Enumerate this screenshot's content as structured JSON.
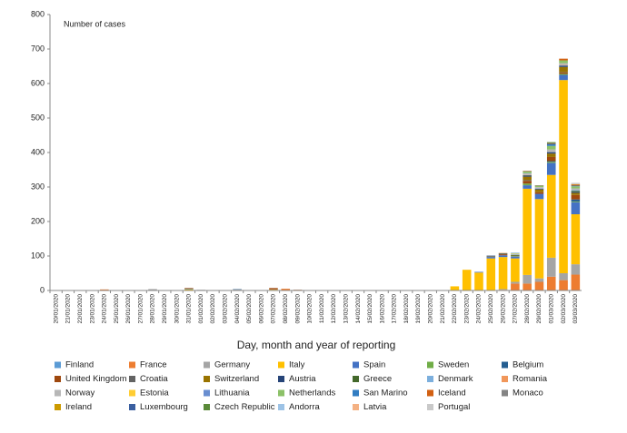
{
  "chart_data": {
    "type": "stacked_bar",
    "y_label": "Number of cases",
    "x_label": "Day, month and year of reporting",
    "categories": [
      "20/01/2020",
      "21/01/2020",
      "22/01/2020",
      "23/01/2020",
      "24/01/2020",
      "25/01/2020",
      "26/01/2020",
      "27/01/2020",
      "28/01/2020",
      "29/01/2020",
      "30/01/2020",
      "31/01/2020",
      "01/02/2020",
      "02/02/2020",
      "03/02/2020",
      "04/02/2020",
      "05/02/2020",
      "06/02/2020",
      "07/02/2020",
      "08/02/2020",
      "09/02/2020",
      "10/02/2020",
      "11/02/2020",
      "12/02/2020",
      "13/02/2020",
      "14/02/2020",
      "15/02/2020",
      "16/02/2020",
      "17/02/2020",
      "18/02/2020",
      "19/02/2020",
      "20/02/2020",
      "21/02/2020",
      "22/02/2020",
      "23/02/2020",
      "24/02/2020",
      "25/02/2020",
      "26/02/2020",
      "27/02/2020",
      "28/02/2020",
      "29/02/2020",
      "01/03/2020",
      "02/03/2020",
      "03/03/2020"
    ],
    "ylim": [
      0,
      800
    ],
    "yticks": [
      0,
      100,
      200,
      300,
      400,
      500,
      600,
      700,
      800
    ],
    "series": [
      {
        "name": "Finland",
        "color": "#5b9bd5",
        "values": [
          0,
          0,
          0,
          0,
          0,
          0,
          0,
          0,
          0,
          1,
          0,
          0,
          0,
          0,
          0,
          0,
          0,
          0,
          0,
          0,
          0,
          0,
          0,
          0,
          0,
          0,
          0,
          0,
          0,
          0,
          0,
          0,
          0,
          0,
          0,
          0,
          0,
          0,
          0,
          0,
          0,
          0,
          0,
          1
        ]
      },
      {
        "name": "France",
        "color": "#ed7d31",
        "values": [
          0,
          0,
          0,
          0,
          3,
          0,
          0,
          0,
          1,
          0,
          0,
          0,
          0,
          0,
          0,
          0,
          0,
          0,
          0,
          5,
          0,
          0,
          0,
          0,
          0,
          0,
          0,
          0,
          0,
          0,
          0,
          0,
          0,
          0,
          0,
          0,
          0,
          2,
          20,
          20,
          25,
          40,
          30,
          45
        ]
      },
      {
        "name": "Germany",
        "color": "#a5a5a5",
        "values": [
          0,
          0,
          0,
          0,
          0,
          0,
          0,
          1,
          3,
          0,
          0,
          1,
          2,
          0,
          0,
          3,
          0,
          0,
          2,
          0,
          0,
          0,
          0,
          0,
          0,
          0,
          0,
          0,
          0,
          0,
          0,
          0,
          0,
          0,
          0,
          0,
          0,
          2,
          5,
          25,
          10,
          55,
          20,
          30
        ]
      },
      {
        "name": "Italy",
        "color": "#ffc000",
        "values": [
          0,
          0,
          0,
          0,
          0,
          0,
          0,
          0,
          0,
          0,
          0,
          2,
          0,
          0,
          0,
          0,
          0,
          0,
          1,
          0,
          0,
          0,
          0,
          0,
          0,
          0,
          0,
          0,
          0,
          0,
          0,
          0,
          0,
          12,
          60,
          52,
          93,
          93,
          68,
          250,
          230,
          240,
          560,
          145
        ]
      },
      {
        "name": "Spain",
        "color": "#4472c4",
        "values": [
          0,
          0,
          0,
          0,
          0,
          0,
          0,
          0,
          0,
          0,
          0,
          1,
          0,
          0,
          1,
          0,
          0,
          0,
          0,
          0,
          0,
          0,
          0,
          0,
          0,
          0,
          0,
          0,
          0,
          0,
          0,
          0,
          0,
          0,
          0,
          2,
          4,
          5,
          5,
          10,
          15,
          35,
          15,
          35
        ]
      },
      {
        "name": "Sweden",
        "color": "#70ad47",
        "values": [
          0,
          0,
          0,
          0,
          0,
          0,
          0,
          0,
          0,
          0,
          0,
          1,
          0,
          0,
          0,
          0,
          0,
          0,
          0,
          0,
          0,
          0,
          0,
          0,
          0,
          0,
          0,
          0,
          0,
          0,
          0,
          0,
          0,
          0,
          0,
          0,
          0,
          0,
          1,
          5,
          0,
          3,
          3,
          2
        ]
      },
      {
        "name": "Belgium",
        "color": "#255e91",
        "values": [
          0,
          0,
          0,
          0,
          0,
          0,
          0,
          0,
          0,
          0,
          0,
          0,
          0,
          0,
          0,
          1,
          0,
          0,
          0,
          0,
          0,
          0,
          0,
          0,
          0,
          0,
          0,
          0,
          0,
          0,
          0,
          0,
          0,
          0,
          0,
          0,
          0,
          0,
          0,
          0,
          0,
          2,
          0,
          6
        ]
      },
      {
        "name": "United Kingdom",
        "color": "#9e480e",
        "values": [
          0,
          0,
          0,
          0,
          0,
          0,
          0,
          0,
          0,
          0,
          0,
          2,
          0,
          0,
          0,
          0,
          0,
          1,
          4,
          0,
          2,
          0,
          0,
          0,
          0,
          0,
          0,
          0,
          0,
          0,
          0,
          0,
          0,
          0,
          0,
          0,
          0,
          3,
          0,
          8,
          5,
          12,
          4,
          13
        ]
      },
      {
        "name": "Croatia",
        "color": "#636363",
        "values": [
          0,
          0,
          0,
          0,
          0,
          0,
          0,
          0,
          0,
          0,
          0,
          0,
          0,
          0,
          0,
          0,
          0,
          0,
          0,
          0,
          0,
          0,
          0,
          0,
          0,
          0,
          0,
          0,
          0,
          0,
          0,
          0,
          0,
          0,
          0,
          0,
          1,
          2,
          1,
          2,
          0,
          0,
          1,
          0
        ]
      },
      {
        "name": "Switzerland",
        "color": "#997300",
        "values": [
          0,
          0,
          0,
          0,
          0,
          0,
          0,
          0,
          0,
          0,
          0,
          0,
          0,
          0,
          0,
          0,
          0,
          0,
          0,
          0,
          0,
          0,
          0,
          0,
          0,
          0,
          0,
          0,
          0,
          0,
          0,
          0,
          0,
          0,
          0,
          0,
          1,
          0,
          1,
          10,
          8,
          10,
          15,
          6
        ]
      },
      {
        "name": "Austria",
        "color": "#264478",
        "values": [
          0,
          0,
          0,
          0,
          0,
          0,
          0,
          0,
          0,
          0,
          0,
          0,
          0,
          0,
          0,
          0,
          0,
          0,
          0,
          0,
          0,
          0,
          0,
          0,
          0,
          0,
          0,
          0,
          0,
          0,
          0,
          0,
          0,
          0,
          0,
          0,
          2,
          0,
          0,
          3,
          2,
          4,
          4,
          3
        ]
      },
      {
        "name": "Greece",
        "color": "#43682b",
        "values": [
          0,
          0,
          0,
          0,
          0,
          0,
          0,
          0,
          0,
          0,
          0,
          0,
          0,
          0,
          0,
          0,
          0,
          0,
          0,
          0,
          0,
          0,
          0,
          0,
          0,
          0,
          0,
          0,
          0,
          0,
          0,
          0,
          0,
          0,
          0,
          0,
          0,
          1,
          2,
          1,
          0,
          0,
          0,
          3
        ]
      },
      {
        "name": "Denmark",
        "color": "#7cafdd",
        "values": [
          0,
          0,
          0,
          0,
          0,
          0,
          0,
          0,
          0,
          0,
          0,
          0,
          0,
          0,
          0,
          0,
          0,
          0,
          0,
          0,
          0,
          0,
          0,
          0,
          0,
          0,
          0,
          0,
          0,
          0,
          0,
          0,
          0,
          0,
          0,
          0,
          0,
          0,
          1,
          0,
          2,
          0,
          1,
          2
        ]
      },
      {
        "name": "Romania",
        "color": "#f1975a",
        "values": [
          0,
          0,
          0,
          0,
          0,
          0,
          0,
          0,
          0,
          0,
          0,
          0,
          0,
          0,
          0,
          0,
          0,
          0,
          0,
          0,
          0,
          0,
          0,
          0,
          0,
          0,
          0,
          0,
          0,
          0,
          0,
          0,
          0,
          0,
          0,
          0,
          0,
          1,
          0,
          1,
          1,
          0,
          1,
          0
        ]
      },
      {
        "name": "Norway",
        "color": "#b7b7b7",
        "values": [
          0,
          0,
          0,
          0,
          0,
          0,
          0,
          0,
          0,
          0,
          0,
          0,
          0,
          0,
          0,
          0,
          0,
          0,
          0,
          0,
          0,
          0,
          0,
          0,
          0,
          0,
          0,
          0,
          0,
          0,
          0,
          0,
          0,
          0,
          0,
          0,
          0,
          0,
          2,
          4,
          2,
          8,
          5,
          5
        ]
      },
      {
        "name": "Estonia",
        "color": "#ffcd33",
        "values": [
          0,
          0,
          0,
          0,
          0,
          0,
          0,
          0,
          0,
          0,
          0,
          0,
          0,
          0,
          0,
          0,
          0,
          0,
          0,
          0,
          0,
          0,
          0,
          0,
          0,
          0,
          0,
          0,
          0,
          0,
          0,
          0,
          0,
          0,
          0,
          0,
          0,
          0,
          1,
          0,
          0,
          0,
          0,
          0
        ]
      },
      {
        "name": "Lithuania",
        "color": "#698ed0",
        "values": [
          0,
          0,
          0,
          0,
          0,
          0,
          0,
          0,
          0,
          0,
          0,
          0,
          0,
          0,
          0,
          0,
          0,
          0,
          0,
          0,
          0,
          0,
          0,
          0,
          0,
          0,
          0,
          0,
          0,
          0,
          0,
          0,
          0,
          0,
          0,
          0,
          0,
          0,
          0,
          1,
          0,
          0,
          0,
          0
        ]
      },
      {
        "name": "Netherlands",
        "color": "#8cc168",
        "values": [
          0,
          0,
          0,
          0,
          0,
          0,
          0,
          0,
          0,
          0,
          0,
          0,
          0,
          0,
          0,
          0,
          0,
          0,
          0,
          0,
          0,
          0,
          0,
          0,
          0,
          0,
          0,
          0,
          0,
          0,
          0,
          0,
          0,
          0,
          0,
          0,
          0,
          0,
          1,
          5,
          3,
          10,
          8,
          6
        ]
      },
      {
        "name": "San Marino",
        "color": "#327dc2",
        "values": [
          0,
          0,
          0,
          0,
          0,
          0,
          0,
          0,
          0,
          0,
          0,
          0,
          0,
          0,
          0,
          0,
          0,
          0,
          0,
          0,
          0,
          0,
          0,
          0,
          0,
          0,
          0,
          0,
          0,
          0,
          0,
          0,
          0,
          0,
          0,
          0,
          0,
          0,
          1,
          0,
          0,
          6,
          0,
          2
        ]
      },
      {
        "name": "Iceland",
        "color": "#d26012",
        "values": [
          0,
          0,
          0,
          0,
          0,
          0,
          0,
          0,
          0,
          0,
          0,
          0,
          0,
          0,
          0,
          0,
          0,
          0,
          0,
          0,
          0,
          0,
          0,
          0,
          0,
          0,
          0,
          0,
          0,
          0,
          0,
          0,
          0,
          0,
          0,
          0,
          0,
          0,
          0,
          1,
          0,
          2,
          5,
          3
        ]
      },
      {
        "name": "Monaco",
        "color": "#848484",
        "values": [
          0,
          0,
          0,
          0,
          0,
          0,
          0,
          0,
          0,
          0,
          0,
          0,
          0,
          0,
          0,
          0,
          0,
          0,
          0,
          0,
          0,
          0,
          0,
          0,
          0,
          0,
          0,
          0,
          0,
          0,
          0,
          0,
          0,
          0,
          0,
          0,
          0,
          0,
          0,
          1,
          0,
          0,
          0,
          0
        ]
      },
      {
        "name": "Ireland",
        "color": "#cc9a00",
        "values": [
          0,
          0,
          0,
          0,
          0,
          0,
          0,
          0,
          0,
          0,
          0,
          0,
          0,
          0,
          0,
          0,
          0,
          0,
          0,
          0,
          0,
          0,
          0,
          0,
          0,
          0,
          0,
          0,
          0,
          0,
          0,
          0,
          0,
          0,
          0,
          0,
          0,
          0,
          0,
          0,
          1,
          0,
          0,
          1
        ]
      },
      {
        "name": "Luxembourg",
        "color": "#3a5fa0",
        "values": [
          0,
          0,
          0,
          0,
          0,
          0,
          0,
          0,
          0,
          0,
          0,
          0,
          0,
          0,
          0,
          0,
          0,
          0,
          0,
          0,
          0,
          0,
          0,
          0,
          0,
          0,
          0,
          0,
          0,
          0,
          0,
          0,
          0,
          0,
          0,
          0,
          0,
          0,
          0,
          0,
          1,
          0,
          0,
          0
        ]
      },
      {
        "name": "Czech Republic",
        "color": "#5a8a39",
        "values": [
          0,
          0,
          0,
          0,
          0,
          0,
          0,
          0,
          0,
          0,
          0,
          0,
          0,
          0,
          0,
          0,
          0,
          0,
          0,
          0,
          0,
          0,
          0,
          0,
          0,
          0,
          0,
          0,
          0,
          0,
          0,
          0,
          0,
          0,
          0,
          0,
          0,
          0,
          0,
          0,
          0,
          3,
          0,
          0
        ]
      },
      {
        "name": "Andorra",
        "color": "#9dc3e6",
        "values": [
          0,
          0,
          0,
          0,
          0,
          0,
          0,
          0,
          0,
          0,
          0,
          0,
          0,
          0,
          0,
          0,
          0,
          0,
          0,
          0,
          0,
          0,
          0,
          0,
          0,
          0,
          0,
          0,
          0,
          0,
          0,
          0,
          0,
          0,
          0,
          0,
          0,
          0,
          0,
          0,
          0,
          0,
          0,
          1
        ]
      },
      {
        "name": "Latvia",
        "color": "#f4b183",
        "values": [
          0,
          0,
          0,
          0,
          0,
          0,
          0,
          0,
          0,
          0,
          0,
          0,
          0,
          0,
          0,
          0,
          0,
          0,
          0,
          0,
          0,
          0,
          0,
          0,
          0,
          0,
          0,
          0,
          0,
          0,
          0,
          0,
          0,
          0,
          0,
          0,
          0,
          0,
          0,
          0,
          0,
          0,
          0,
          1
        ]
      },
      {
        "name": "Portugal",
        "color": "#c9c9c9",
        "values": [
          0,
          0,
          0,
          0,
          0,
          0,
          0,
          0,
          0,
          0,
          0,
          0,
          0,
          0,
          0,
          0,
          0,
          0,
          0,
          0,
          0,
          0,
          0,
          0,
          0,
          0,
          0,
          0,
          0,
          0,
          0,
          0,
          0,
          0,
          0,
          0,
          0,
          0,
          0,
          0,
          0,
          0,
          0,
          2
        ]
      }
    ]
  }
}
